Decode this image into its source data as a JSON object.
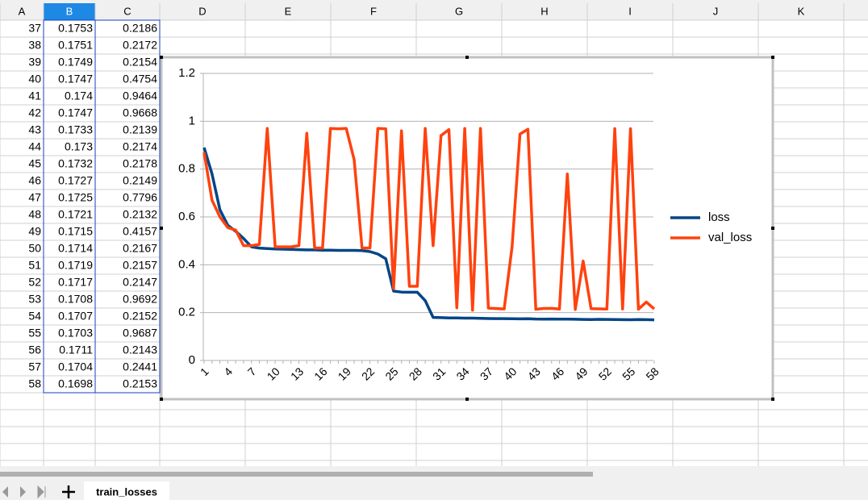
{
  "spreadsheet": {
    "columns": [
      "A",
      "B",
      "C",
      "D",
      "E",
      "F",
      "G",
      "H",
      "I",
      "J",
      "K"
    ],
    "rows": [
      [
        37,
        0.1753,
        0.2186
      ],
      [
        38,
        0.1751,
        0.2172
      ],
      [
        39,
        0.1749,
        0.2154
      ],
      [
        40,
        0.1747,
        0.4754
      ],
      [
        41,
        0.174,
        0.9464
      ],
      [
        42,
        0.1747,
        0.9668
      ],
      [
        43,
        0.1733,
        0.2139
      ],
      [
        44,
        0.173,
        0.2174
      ],
      [
        45,
        0.1732,
        0.2178
      ],
      [
        46,
        0.1727,
        0.2149
      ],
      [
        47,
        0.1725,
        0.7796
      ],
      [
        48,
        0.1721,
        0.2132
      ],
      [
        49,
        0.1715,
        0.4157
      ],
      [
        50,
        0.1714,
        0.2167
      ],
      [
        51,
        0.1719,
        0.2157
      ],
      [
        52,
        0.1717,
        0.2147
      ],
      [
        53,
        0.1708,
        0.9692
      ],
      [
        54,
        0.1707,
        0.2152
      ],
      [
        55,
        0.1703,
        0.9687
      ],
      [
        56,
        0.1711,
        0.2143
      ],
      [
        57,
        0.1704,
        0.2441
      ],
      [
        58,
        0.1698,
        0.2153
      ]
    ]
  },
  "sheet_tab": "train_losses",
  "chart_data": {
    "type": "line",
    "categories": [
      1,
      null,
      null,
      4,
      null,
      null,
      7,
      null,
      null,
      10,
      null,
      null,
      13,
      null,
      null,
      16,
      null,
      null,
      19,
      null,
      null,
      22,
      null,
      null,
      25,
      null,
      null,
      28,
      null,
      null,
      31,
      null,
      null,
      34,
      null,
      null,
      37,
      null,
      null,
      40,
      null,
      null,
      43,
      null,
      null,
      46,
      null,
      null,
      49,
      null,
      null,
      52,
      null,
      null,
      55,
      null,
      null,
      58
    ],
    "series": [
      {
        "name": "loss",
        "color": "#004586",
        "values": [
          0.89,
          0.78,
          0.63,
          0.565,
          0.54,
          0.51,
          0.475,
          0.47,
          0.468,
          0.466,
          0.465,
          0.464,
          0.463,
          0.462,
          0.462,
          0.461,
          0.461,
          0.46,
          0.46,
          0.46,
          0.459,
          0.455,
          0.445,
          0.425,
          0.29,
          0.286,
          0.285,
          0.285,
          0.25,
          0.18,
          0.179,
          0.178,
          0.178,
          0.177,
          0.177,
          0.176,
          0.1753,
          0.1751,
          0.1749,
          0.1747,
          0.174,
          0.1747,
          0.1733,
          0.173,
          0.1732,
          0.1727,
          0.1725,
          0.1721,
          0.1715,
          0.1714,
          0.1719,
          0.1717,
          0.1708,
          0.1707,
          0.1703,
          0.1711,
          0.1704,
          0.1698
        ]
      },
      {
        "name": "val_loss",
        "color": "#ff420e",
        "values": [
          0.87,
          0.67,
          0.6,
          0.555,
          0.545,
          0.48,
          0.48,
          0.485,
          0.97,
          0.475,
          0.475,
          0.475,
          0.48,
          0.95,
          0.47,
          0.47,
          0.97,
          0.968,
          0.97,
          0.84,
          0.47,
          0.47,
          0.97,
          0.968,
          0.3,
          0.96,
          0.31,
          0.31,
          0.97,
          0.48,
          0.94,
          0.965,
          0.22,
          0.97,
          0.21,
          0.97,
          0.2186,
          0.2172,
          0.2154,
          0.4754,
          0.9464,
          0.9668,
          0.2139,
          0.2174,
          0.2178,
          0.2149,
          0.7796,
          0.2132,
          0.4157,
          0.2167,
          0.2157,
          0.2147,
          0.9692,
          0.2152,
          0.9687,
          0.2143,
          0.2441,
          0.2153
        ]
      }
    ],
    "ylim": [
      0,
      1.2
    ],
    "yticks": [
      0,
      0.2,
      0.4,
      0.6,
      0.8,
      1,
      1.2
    ],
    "grid": true,
    "legend": "right"
  }
}
